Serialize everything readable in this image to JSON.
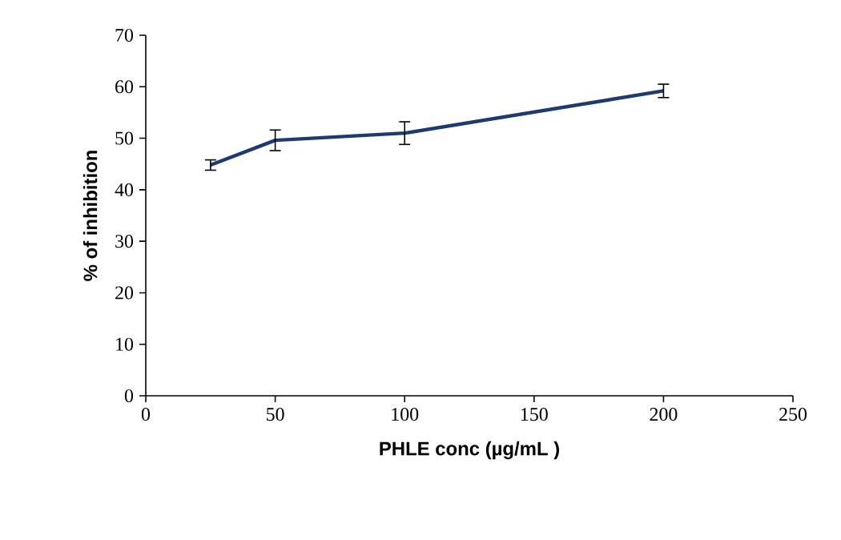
{
  "chart_data": {
    "type": "line",
    "xlabel": "PHLE conc (µg/mL )",
    "ylabel": "% of inhibition",
    "x": [
      25,
      50,
      100,
      200
    ],
    "values": [
      44.8,
      49.6,
      51.0,
      59.2
    ],
    "errors": [
      1.0,
      2.0,
      2.2,
      1.3
    ],
    "color": "#1f3a6e",
    "marker": "none",
    "xlim": [
      0,
      250
    ],
    "xticks": [
      0,
      50,
      100,
      150,
      200,
      250
    ],
    "ylim": [
      0,
      70
    ],
    "yticks": [
      0,
      10,
      20,
      30,
      40,
      50,
      60,
      70
    ]
  }
}
